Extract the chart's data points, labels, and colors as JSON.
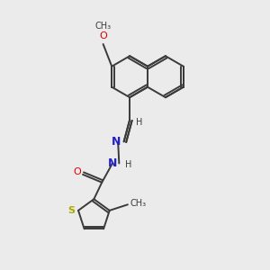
{
  "background_color": "#ebebeb",
  "bond_color": "#3a3a3a",
  "atom_colors": {
    "O": "#dd0000",
    "N": "#2222cc",
    "S": "#aaaa00",
    "C": "#3a3a3a",
    "H": "#3a3a3a"
  },
  "figsize": [
    3.0,
    3.0
  ],
  "dpi": 100
}
